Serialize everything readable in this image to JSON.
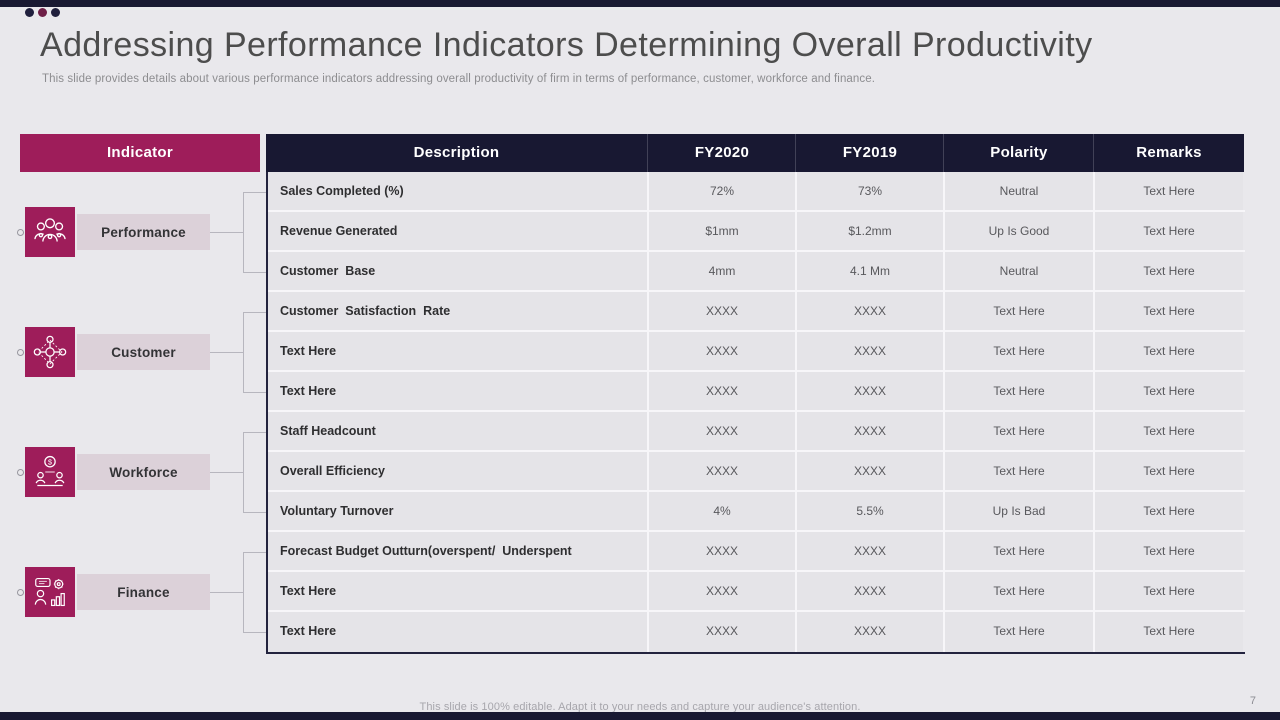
{
  "slide": {
    "title": "Addressing Performance Indicators Determining Overall Productivity",
    "subtitle": "This slide provides details about various performance indicators addressing overall productivity of firm in terms of performance, customer, workforce and finance.",
    "footer": "This slide is 100% editable. Adapt it to your needs and capture your audience's attention.",
    "page_number": "7"
  },
  "colors": {
    "accent_maroon": "#9e1d5a",
    "header_navy": "#181832",
    "label_bg": "#dcd1d9",
    "row_bg": "#e5e4e8",
    "slide_bg": "#e9e8ec"
  },
  "icons": [
    "team-people-icon",
    "customer-network-icon",
    "workforce-money-icon",
    "finance-analyst-icon"
  ],
  "table": {
    "indicator_header": "Indicator",
    "columns": [
      "Description",
      "FY2020",
      "FY2019",
      "Polarity",
      "Remarks"
    ],
    "groups": [
      {
        "label": "Performance"
      },
      {
        "label": "Customer"
      },
      {
        "label": "Workforce"
      },
      {
        "label": "Finance"
      }
    ],
    "rows": [
      {
        "description": "Sales Completed (%)",
        "fy2020": "72%",
        "fy2019": "73%",
        "polarity": "Neutral",
        "remarks": "Text Here"
      },
      {
        "description": "Revenue Generated",
        "fy2020": "$1mm",
        "fy2019": "$1.2mm",
        "polarity": "Up Is Good",
        "remarks": "Text Here"
      },
      {
        "description": "Customer  Base",
        "fy2020": "4mm",
        "fy2019": "4.1 Mm",
        "polarity": "Neutral",
        "remarks": "Text Here"
      },
      {
        "description": "Customer  Satisfaction  Rate",
        "fy2020": "XXXX",
        "fy2019": "XXXX",
        "polarity": "Text Here",
        "remarks": "Text Here"
      },
      {
        "description": "Text Here",
        "fy2020": "XXXX",
        "fy2019": "XXXX",
        "polarity": "Text Here",
        "remarks": "Text Here"
      },
      {
        "description": "Text Here",
        "fy2020": "XXXX",
        "fy2019": "XXXX",
        "polarity": "Text Here",
        "remarks": "Text Here"
      },
      {
        "description": "Staff Headcount",
        "fy2020": "XXXX",
        "fy2019": "XXXX",
        "polarity": "Text Here",
        "remarks": "Text Here"
      },
      {
        "description": "Overall Efficiency",
        "fy2020": "XXXX",
        "fy2019": "XXXX",
        "polarity": "Text Here",
        "remarks": "Text Here"
      },
      {
        "description": "Voluntary Turnover",
        "fy2020": "4%",
        "fy2019": "5.5%",
        "polarity": "Up Is Bad",
        "remarks": "Text Here"
      },
      {
        "description": "Forecast Budget Outturn(overspent/  Underspent",
        "fy2020": "XXXX",
        "fy2019": "XXXX",
        "polarity": "Text Here",
        "remarks": "Text Here"
      },
      {
        "description": "Text Here",
        "fy2020": "XXXX",
        "fy2019": "XXXX",
        "polarity": "Text Here",
        "remarks": "Text Here"
      },
      {
        "description": "Text Here",
        "fy2020": "XXXX",
        "fy2019": "XXXX",
        "polarity": "Text Here",
        "remarks": "Text Here"
      }
    ]
  }
}
